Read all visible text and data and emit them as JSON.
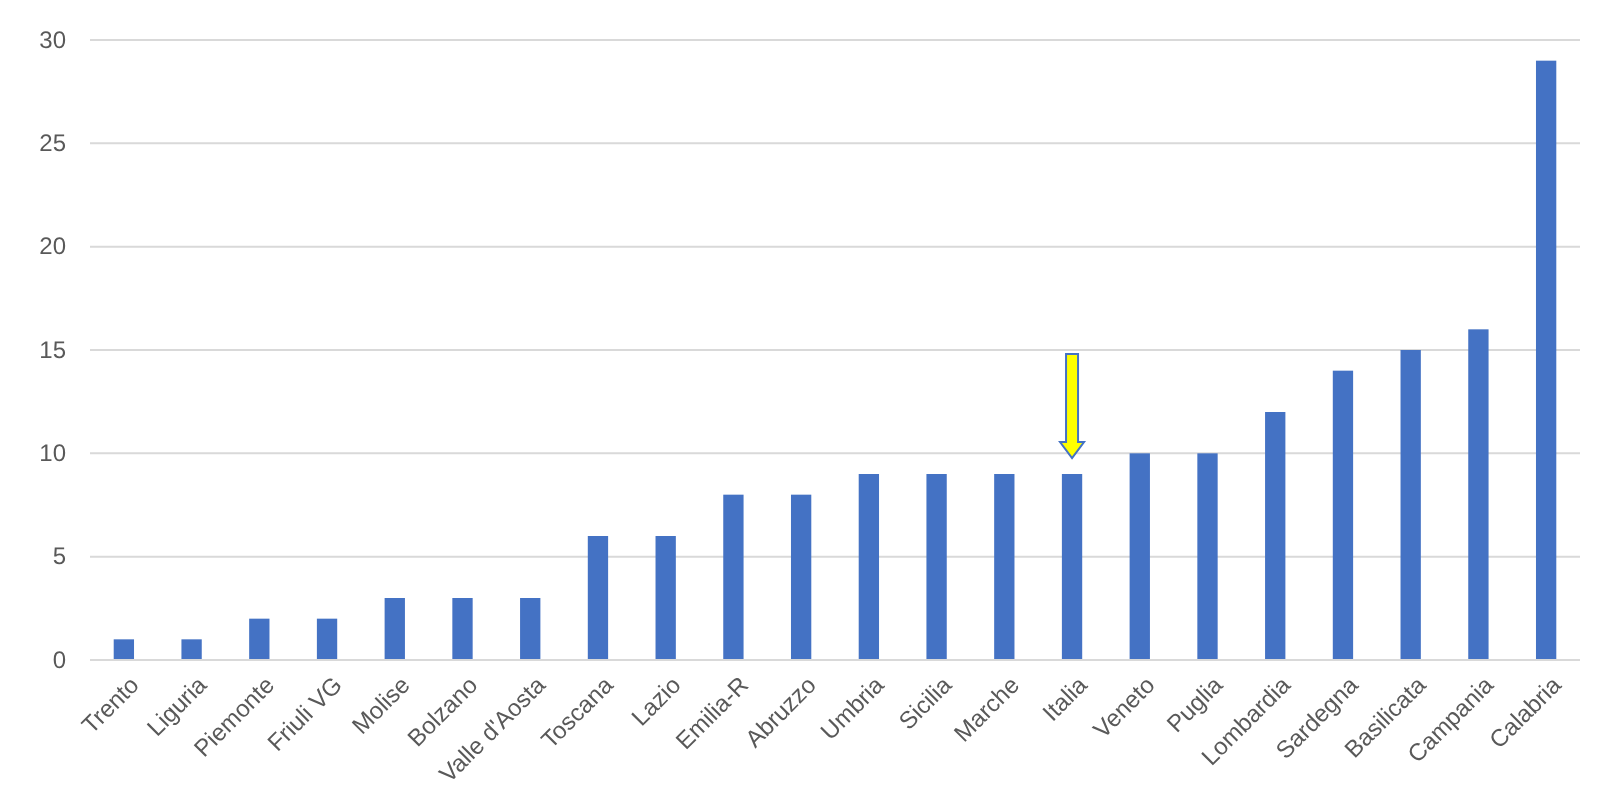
{
  "chart_data": {
    "type": "bar",
    "categories": [
      "Trento",
      "Liguria",
      "Piemonte",
      "Friuli VG",
      "Molise",
      "Bolzano",
      "Valle d'Aosta",
      "Toscana",
      "Lazio",
      "Emilia-R",
      "Abruzzo",
      "Umbria",
      "Sicilia",
      "Marche",
      "Italia",
      "Veneto",
      "Puglia",
      "Lombardia",
      "Sardegna",
      "Basilicata",
      "Campania",
      "Calabria"
    ],
    "values": [
      1,
      1,
      2,
      2,
      3,
      3,
      3,
      6,
      6,
      8,
      8,
      9,
      9,
      9,
      9,
      10,
      10,
      12,
      14,
      15,
      16,
      29
    ],
    "color": "#4472c4",
    "ylim": [
      0,
      30
    ],
    "yticks": [
      0,
      5,
      10,
      15,
      20,
      25,
      30
    ],
    "grid": "y"
  }
}
